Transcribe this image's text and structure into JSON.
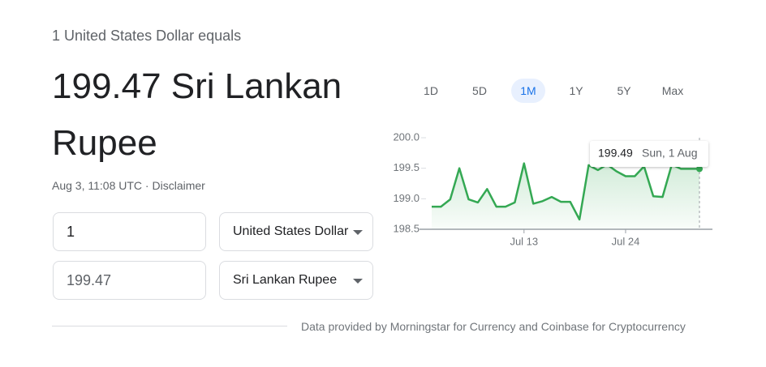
{
  "header": {
    "subtitle": "1 United States Dollar equals",
    "result": "199.47 Sri Lankan Rupee",
    "timestamp": "Aug 3, 11:08 UTC",
    "separator": "·",
    "disclaimer": "Disclaimer"
  },
  "converter": {
    "from_amount": "1",
    "from_currency": "United States Dollar",
    "to_amount": "199.47",
    "to_currency": "Sri Lankan Rupee"
  },
  "ranges": {
    "options": [
      "1D",
      "5D",
      "1M",
      "1Y",
      "5Y",
      "Max"
    ],
    "selected": "1M"
  },
  "chart_data": {
    "type": "line",
    "color": "#34a853",
    "categories": [
      null,
      null,
      null,
      null,
      null,
      null,
      null,
      null,
      null,
      null,
      "Jul 13",
      null,
      null,
      null,
      null,
      null,
      null,
      null,
      null,
      null,
      null,
      "Jul 24",
      null,
      null,
      null,
      null,
      null,
      null,
      null,
      null
    ],
    "values": [
      198.87,
      198.87,
      198.99,
      199.5,
      198.99,
      198.94,
      199.16,
      198.87,
      198.87,
      198.94,
      199.58,
      198.92,
      198.96,
      199.03,
      198.95,
      198.95,
      198.66,
      199.55,
      199.47,
      199.56,
      199.45,
      199.37,
      199.37,
      199.53,
      199.04,
      199.03,
      199.56,
      199.49,
      199.49,
      199.49
    ],
    "ylim": [
      198.5,
      200.0
    ],
    "yticks": [
      {
        "value": 200.0,
        "label": "200.0"
      },
      {
        "value": 199.5,
        "label": "199.5"
      },
      {
        "value": 199.0,
        "label": "199.0"
      },
      {
        "value": 198.5,
        "label": "198.5"
      }
    ],
    "tooltip": {
      "value": "199.49",
      "date": "Sun, 1 Aug"
    }
  },
  "footer": "Data provided by Morningstar for Currency and Coinbase for Cryptocurrency"
}
